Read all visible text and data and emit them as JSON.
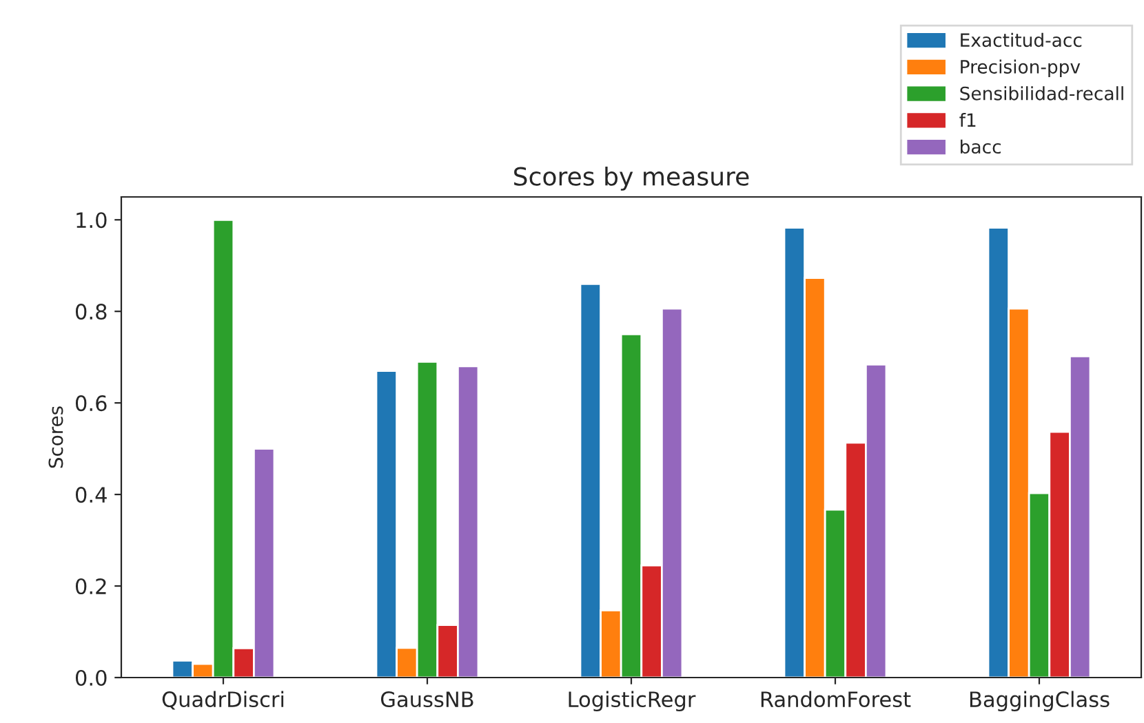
{
  "chart_data": {
    "type": "bar",
    "title": "Scores by measure",
    "ylabel": "Scores",
    "categories": [
      "QuadrDiscri",
      "GaussNB",
      "LogisticRegr",
      "RandomForest",
      "BaggingClass"
    ],
    "series": [
      {
        "name": "Exactitud-acc",
        "color": "#1f77b4",
        "values": [
          0.037,
          0.67,
          0.86,
          0.983,
          0.983
        ]
      },
      {
        "name": "Precision-ppv",
        "color": "#ff7f0e",
        "values": [
          0.03,
          0.065,
          0.147,
          0.873,
          0.806
        ]
      },
      {
        "name": "Sensibilidad-recall",
        "color": "#2ca02c",
        "values": [
          1.0,
          0.69,
          0.75,
          0.367,
          0.403
        ]
      },
      {
        "name": "f1",
        "color": "#d62728",
        "values": [
          0.064,
          0.115,
          0.245,
          0.513,
          0.537
        ]
      },
      {
        "name": "bacc",
        "color": "#9467bd",
        "values": [
          0.5,
          0.68,
          0.806,
          0.684,
          0.702
        ]
      }
    ],
    "ylim": [
      0,
      1.05
    ],
    "yticks": [
      {
        "value": 0,
        "label": "0.0"
      },
      {
        "value": 0.2,
        "label": "0.2"
      },
      {
        "value": 0.4,
        "label": "0.4"
      },
      {
        "value": 0.6,
        "label": "0.6"
      },
      {
        "value": 0.8,
        "label": "0.8"
      },
      {
        "value": 1.0,
        "label": "1.0"
      }
    ],
    "grid": false,
    "legend": "top right"
  }
}
